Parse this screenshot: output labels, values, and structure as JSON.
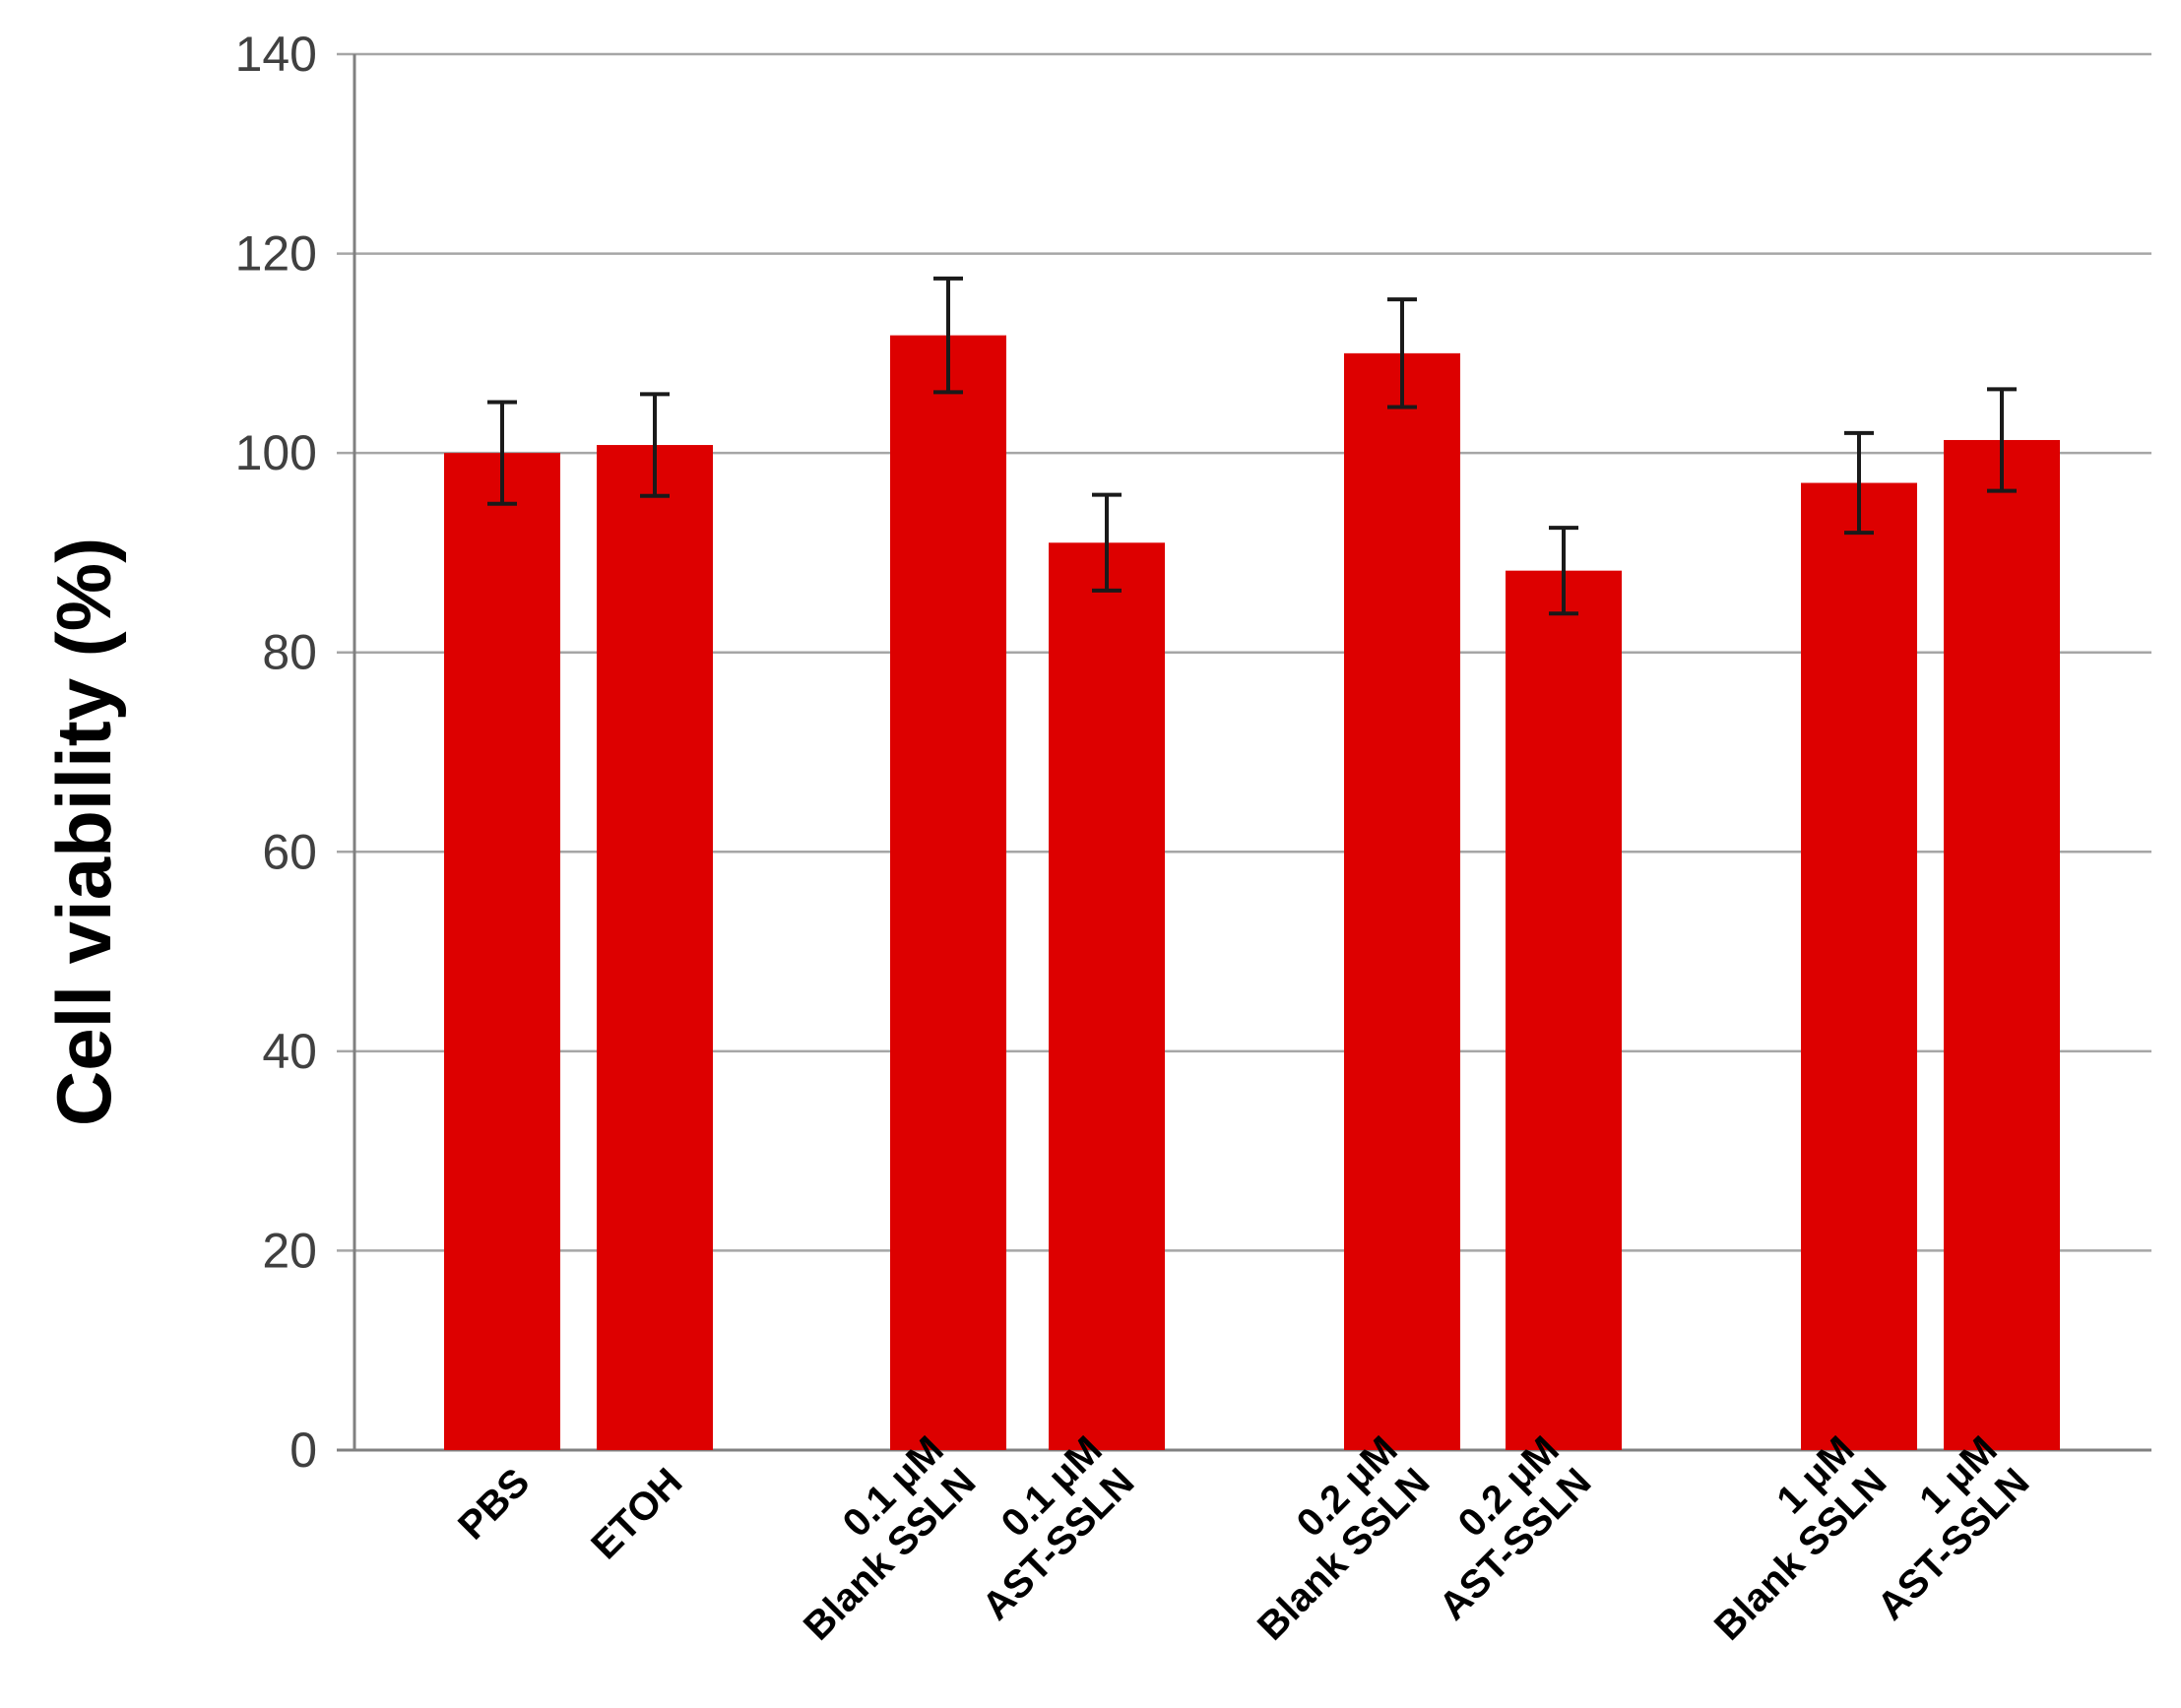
{
  "colors": {
    "bar": "#dd0000",
    "error_bar": "#1a1a1a",
    "grid": "#a6a6a6"
  },
  "chart_data": {
    "type": "bar",
    "ylabel": "Cell viability (%)",
    "xlabel": "",
    "ylim": [
      0,
      140
    ],
    "yticks": [
      0,
      20,
      40,
      60,
      80,
      100,
      120,
      140
    ],
    "grid": true,
    "legend": "none",
    "categories": [
      [
        "PBS"
      ],
      [
        "ETOH"
      ],
      [
        "0.1 μM",
        "Blank SSLN"
      ],
      [
        "0.1 μM",
        "AST-SSLN"
      ],
      [
        "0.2 μM",
        "Blank SSLN"
      ],
      [
        "0.2 μM",
        "AST-SSLN"
      ],
      [
        "1 μM",
        "Blank SSLN"
      ],
      [
        "1 μM",
        "AST-SSLN"
      ]
    ],
    "values": [
      100,
      100.8,
      111.8,
      91.0,
      110.0,
      88.2,
      97.0,
      101.3
    ],
    "errors": [
      5.1,
      5.1,
      5.7,
      4.8,
      5.4,
      4.3,
      5.0,
      5.1
    ]
  }
}
